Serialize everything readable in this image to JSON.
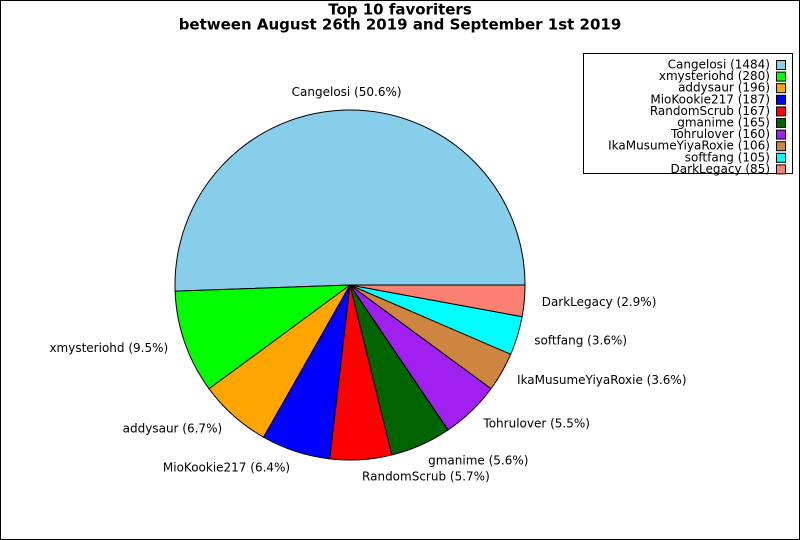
{
  "chart_data": {
    "type": "pie",
    "title": "Top 10 favoriters",
    "subtitle": "between August 26th 2019 and September 1st 2019",
    "values": [
      1484,
      280,
      196,
      187,
      167,
      165,
      160,
      106,
      105,
      85
    ],
    "value_labels": [
      "Cangelosi (50.6%)",
      "xmysteriohd (9.5%)",
      "addysaur (6.7%)",
      "MioKookie217 (6.4%)",
      "RandomScrub (5.7%)",
      "gmanime (5.6%)",
      "Tohrulover (5.5%)",
      "IkaMusumeYiyaRoxie (3.6%)",
      "softfang (3.6%)",
      "DarkLegacy (2.9%)"
    ],
    "legend_labels": [
      "Cangelosi (1484)",
      "xmysteriohd (280)",
      "addysaur (196)",
      "MioKookie217 (187)",
      "RandomScrub (167)",
      "gmanime (165)",
      "Tohrulover (160)",
      "IkaMusumeYiyaRoxie (106)",
      "softfang (105)",
      "DarkLegacy (85)"
    ],
    "colors": [
      "#87ceeb",
      "#00ff00",
      "#ffa500",
      "#0000ff",
      "#ff0000",
      "#006400",
      "#a020f0",
      "#cd853f",
      "#00ffff",
      "#fa8072"
    ],
    "legend": "upper right"
  }
}
